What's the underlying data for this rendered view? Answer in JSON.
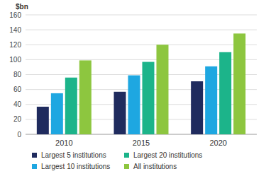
{
  "chart_data": {
    "type": "bar",
    "y_label": "$bn",
    "categories": [
      "2010",
      "2015",
      "2020"
    ],
    "series": [
      {
        "name": "Largest 5 institutions",
        "color": "#1f2b5e",
        "values": [
          37,
          57,
          71
        ]
      },
      {
        "name": "Largest 10 institutions",
        "color": "#1ea7e1",
        "values": [
          55,
          79,
          91
        ]
      },
      {
        "name": "Largest 20 institutions",
        "color": "#1cb48a",
        "values": [
          76,
          97,
          110
        ]
      },
      {
        "name": "All institutions",
        "color": "#8dc63f",
        "values": [
          99,
          120,
          135
        ]
      }
    ],
    "ylim": [
      0,
      160
    ],
    "yticks": [
      0,
      20,
      40,
      60,
      80,
      100,
      120,
      140,
      160
    ],
    "grid": true,
    "legend": "bottom"
  }
}
